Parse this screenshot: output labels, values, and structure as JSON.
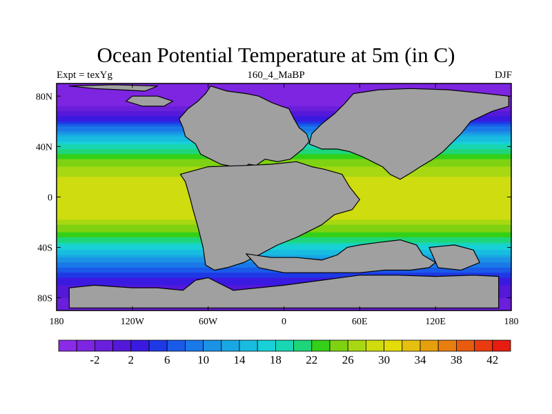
{
  "title": "Ocean Potential Temperature at 5m (in C)",
  "left_label": "Expt = texYg",
  "center_label": "160_4_MaBP",
  "right_label": "DJF",
  "map": {
    "lon_range": [
      -180,
      180
    ],
    "lat_range": [
      -90,
      90
    ],
    "x_ticks": [
      {
        "lon": -180,
        "label": "180"
      },
      {
        "lon": -120,
        "label": "120W"
      },
      {
        "lon": -60,
        "label": "60W"
      },
      {
        "lon": 0,
        "label": "0"
      },
      {
        "lon": 60,
        "label": "60E"
      },
      {
        "lon": 120,
        "label": "120E"
      },
      {
        "lon": 180,
        "label": "180"
      }
    ],
    "y_ticks": [
      {
        "lat": 80,
        "label": "80N"
      },
      {
        "lat": 40,
        "label": "40N"
      },
      {
        "lat": 0,
        "label": "0"
      },
      {
        "lat": -40,
        "label": "40S"
      },
      {
        "lat": -80,
        "label": "80S"
      }
    ],
    "land_color": "#a0a0a0",
    "temperature_profile": [
      {
        "lat": 90,
        "value": -2
      },
      {
        "lat": 75,
        "value": -1
      },
      {
        "lat": 62,
        "value": 5
      },
      {
        "lat": 50,
        "value": 14
      },
      {
        "lat": 40,
        "value": 21
      },
      {
        "lat": 30,
        "value": 26
      },
      {
        "lat": 20,
        "value": 29
      },
      {
        "lat": 10,
        "value": 31
      },
      {
        "lat": 0,
        "value": 32
      },
      {
        "lat": -15,
        "value": 31
      },
      {
        "lat": -25,
        "value": 27
      },
      {
        "lat": -35,
        "value": 22
      },
      {
        "lat": -45,
        "value": 16
      },
      {
        "lat": -55,
        "value": 10
      },
      {
        "lat": -65,
        "value": 5
      },
      {
        "lat": -80,
        "value": 2
      },
      {
        "lat": -90,
        "value": 1
      }
    ],
    "land_polygons": [
      [
        [
          -58,
          88
        ],
        [
          -45,
          84
        ],
        [
          -30,
          82
        ],
        [
          -20,
          80
        ],
        [
          -10,
          75
        ],
        [
          -2,
          72
        ],
        [
          4,
          70
        ],
        [
          8,
          62
        ],
        [
          12,
          55
        ],
        [
          18,
          50
        ],
        [
          20,
          44
        ],
        [
          15,
          38
        ],
        [
          5,
          30
        ],
        [
          -5,
          28
        ],
        [
          -15,
          30
        ],
        [
          -22,
          25
        ],
        [
          -28,
          26
        ],
        [
          -33,
          22
        ],
        [
          -40,
          24
        ],
        [
          -50,
          26
        ],
        [
          -58,
          30
        ],
        [
          -66,
          34
        ],
        [
          -70,
          42
        ],
        [
          -78,
          48
        ],
        [
          -80,
          55
        ],
        [
          -83,
          62
        ],
        [
          -76,
          70
        ],
        [
          -68,
          76
        ],
        [
          -62,
          82
        ]
      ],
      [
        [
          -60,
          24
        ],
        [
          -30,
          25
        ],
        [
          -10,
          26
        ],
        [
          10,
          28
        ],
        [
          22,
          24
        ],
        [
          32,
          22
        ],
        [
          46,
          18
        ],
        [
          52,
          8
        ],
        [
          60,
          -2
        ],
        [
          54,
          -10
        ],
        [
          40,
          -14
        ],
        [
          30,
          -22
        ],
        [
          18,
          -28
        ],
        [
          10,
          -32
        ],
        [
          -5,
          -38
        ],
        [
          -20,
          -46
        ],
        [
          -32,
          -52
        ],
        [
          -45,
          -56
        ],
        [
          -55,
          -58
        ],
        [
          -62,
          -54
        ],
        [
          -64,
          -40
        ],
        [
          -68,
          -24
        ],
        [
          -72,
          -10
        ],
        [
          -74,
          -2
        ],
        [
          -78,
          12
        ],
        [
          -82,
          18
        ]
      ],
      [
        [
          -30,
          -45
        ],
        [
          -10,
          -48
        ],
        [
          10,
          -48
        ],
        [
          30,
          -50
        ],
        [
          42,
          -46
        ],
        [
          50,
          -40
        ],
        [
          60,
          -38
        ],
        [
          75,
          -36
        ],
        [
          92,
          -34
        ],
        [
          105,
          -38
        ],
        [
          110,
          -46
        ],
        [
          120,
          -52
        ],
        [
          115,
          -56
        ],
        [
          100,
          -58
        ],
        [
          80,
          -58
        ],
        [
          60,
          -60
        ],
        [
          40,
          -60
        ],
        [
          20,
          -60
        ],
        [
          0,
          -60
        ],
        [
          -20,
          -56
        ]
      ],
      [
        [
          55,
          82
        ],
        [
          75,
          85
        ],
        [
          100,
          86
        ],
        [
          130,
          85
        ],
        [
          160,
          82
        ],
        [
          178,
          80
        ],
        [
          178,
          72
        ],
        [
          165,
          68
        ],
        [
          148,
          60
        ],
        [
          140,
          50
        ],
        [
          132,
          42
        ],
        [
          126,
          36
        ],
        [
          118,
          30
        ],
        [
          108,
          24
        ],
        [
          102,
          20
        ],
        [
          92,
          14
        ],
        [
          84,
          18
        ],
        [
          78,
          24
        ],
        [
          70,
          28
        ],
        [
          62,
          32
        ],
        [
          52,
          36
        ],
        [
          42,
          38
        ],
        [
          30,
          38
        ],
        [
          20,
          42
        ],
        [
          22,
          50
        ],
        [
          30,
          58
        ],
        [
          40,
          66
        ],
        [
          48,
          74
        ]
      ],
      [
        [
          115,
          -40
        ],
        [
          135,
          -38
        ],
        [
          150,
          -42
        ],
        [
          155,
          -52
        ],
        [
          140,
          -58
        ],
        [
          122,
          -56
        ]
      ],
      [
        [
          -170,
          88
        ],
        [
          -150,
          86
        ],
        [
          -130,
          85
        ],
        [
          -110,
          84
        ],
        [
          -100,
          88
        ],
        [
          -135,
          89
        ]
      ],
      [
        [
          -120,
          80
        ],
        [
          -100,
          80
        ],
        [
          -88,
          76
        ],
        [
          -95,
          72
        ],
        [
          -112,
          72
        ],
        [
          -125,
          76
        ]
      ],
      [
        [
          60,
          -62
        ],
        [
          90,
          -62
        ],
        [
          120,
          -63
        ],
        [
          150,
          -62
        ],
        [
          170,
          -63
        ],
        [
          170,
          -88
        ],
        [
          -170,
          -88
        ],
        [
          -170,
          -72
        ],
        [
          -150,
          -70
        ],
        [
          -120,
          -72
        ],
        [
          -100,
          -72
        ],
        [
          -80,
          -74
        ],
        [
          -70,
          -66
        ],
        [
          -60,
          -64
        ],
        [
          -40,
          -74
        ],
        [
          0,
          -70
        ],
        [
          30,
          -66
        ]
      ]
    ]
  },
  "colorbar": {
    "labels": [
      "-2",
      "2",
      "6",
      "10",
      "14",
      "18",
      "22",
      "26",
      "30",
      "34",
      "38",
      "42"
    ],
    "levels": [
      -4,
      -2,
      0,
      2,
      4,
      6,
      8,
      10,
      12,
      14,
      16,
      18,
      20,
      22,
      24,
      26,
      28,
      30,
      32,
      34,
      36,
      38,
      40,
      42,
      44
    ],
    "colors": [
      "#8a2be6",
      "#7d25e0",
      "#6a1fda",
      "#5418d8",
      "#3a1ae0",
      "#1e38e6",
      "#1a5ae8",
      "#1a78e8",
      "#1a92e6",
      "#18a8e4",
      "#18bce0",
      "#18d0d8",
      "#18d6b4",
      "#1ed67a",
      "#34d018",
      "#7ed212",
      "#a8d812",
      "#cedc10",
      "#e2dc08",
      "#e6c010",
      "#e6a00e",
      "#e87e10",
      "#e85c10",
      "#ea3a10",
      "#e81c10"
    ]
  }
}
